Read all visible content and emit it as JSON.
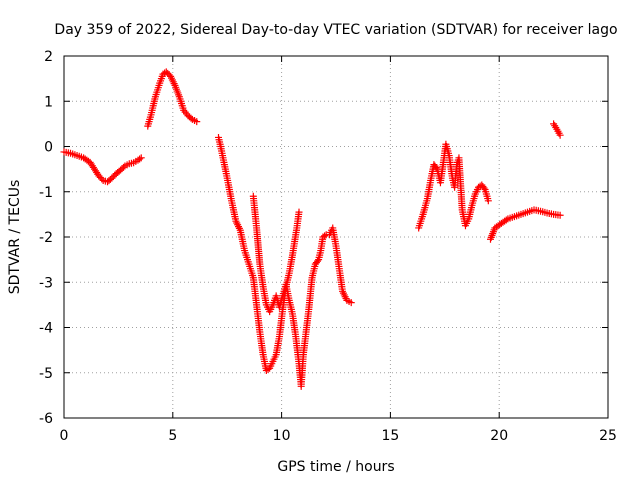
{
  "chart_data": {
    "type": "scatter",
    "title": "Day 359 of 2022, Sidereal Day-to-day VTEC variation (SDTVAR) for receiver lago",
    "xlabel": "GPS time / hours",
    "ylabel": "SDTVAR / TECUs",
    "xlim": [
      0,
      25
    ],
    "ylim": [
      -6,
      2
    ],
    "xticks": [
      0,
      5,
      10,
      15,
      20,
      25
    ],
    "yticks": [
      -6,
      -5,
      -4,
      -3,
      -2,
      -1,
      0,
      1,
      2
    ],
    "grid": true,
    "marker": "+",
    "series_color": "#ff0000",
    "series": [
      {
        "segments": [
          [
            [
              0.0,
              -0.12
            ],
            [
              0.3,
              -0.15
            ],
            [
              0.6,
              -0.2
            ],
            [
              0.9,
              -0.25
            ],
            [
              1.2,
              -0.35
            ],
            [
              1.4,
              -0.5
            ],
            [
              1.6,
              -0.65
            ],
            [
              1.8,
              -0.75
            ],
            [
              2.0,
              -0.78
            ],
            [
              2.2,
              -0.7
            ],
            [
              2.4,
              -0.6
            ],
            [
              2.6,
              -0.52
            ],
            [
              2.8,
              -0.43
            ],
            [
              3.0,
              -0.38
            ],
            [
              3.2,
              -0.36
            ],
            [
              3.4,
              -0.3
            ],
            [
              3.55,
              -0.25
            ]
          ],
          [
            [
              3.85,
              0.45
            ],
            [
              4.0,
              0.7
            ],
            [
              4.2,
              1.1
            ],
            [
              4.4,
              1.4
            ],
            [
              4.55,
              1.6
            ],
            [
              4.7,
              1.65
            ],
            [
              4.9,
              1.55
            ],
            [
              5.1,
              1.35
            ],
            [
              5.3,
              1.1
            ],
            [
              5.5,
              0.8
            ],
            [
              5.7,
              0.68
            ],
            [
              5.9,
              0.6
            ],
            [
              6.1,
              0.55
            ]
          ],
          [
            [
              7.1,
              0.2
            ],
            [
              7.2,
              0.0
            ],
            [
              7.35,
              -0.35
            ],
            [
              7.5,
              -0.7
            ],
            [
              7.7,
              -1.2
            ],
            [
              7.9,
              -1.65
            ],
            [
              8.1,
              -1.85
            ],
            [
              8.3,
              -2.3
            ],
            [
              8.5,
              -2.6
            ],
            [
              8.7,
              -2.9
            ],
            [
              8.85,
              -3.5
            ],
            [
              9.0,
              -4.1
            ],
            [
              9.15,
              -4.6
            ],
            [
              9.3,
              -4.95
            ],
            [
              9.45,
              -4.9
            ],
            [
              9.6,
              -4.75
            ],
            [
              9.75,
              -4.6
            ],
            [
              9.9,
              -4.2
            ],
            [
              10.05,
              -3.6
            ],
            [
              10.2,
              -3.1
            ],
            [
              10.35,
              -2.8
            ],
            [
              10.5,
              -2.4
            ],
            [
              10.6,
              -2.1
            ],
            [
              10.7,
              -1.8
            ],
            [
              10.8,
              -1.45
            ]
          ],
          [
            [
              8.7,
              -1.1
            ],
            [
              8.85,
              -1.8
            ],
            [
              9.0,
              -2.6
            ],
            [
              9.15,
              -3.1
            ],
            [
              9.3,
              -3.5
            ],
            [
              9.45,
              -3.65
            ],
            [
              9.6,
              -3.5
            ],
            [
              9.75,
              -3.3
            ],
            [
              9.9,
              -3.55
            ],
            [
              10.05,
              -3.3
            ],
            [
              10.2,
              -3.05
            ],
            [
              10.35,
              -3.4
            ],
            [
              10.5,
              -3.7
            ],
            [
              10.65,
              -4.2
            ],
            [
              10.8,
              -4.8
            ],
            [
              10.9,
              -5.3
            ],
            [
              11.0,
              -4.6
            ],
            [
              11.1,
              -4.2
            ],
            [
              11.25,
              -3.6
            ],
            [
              11.4,
              -2.9
            ],
            [
              11.55,
              -2.6
            ],
            [
              11.7,
              -2.5
            ],
            [
              11.8,
              -2.3
            ],
            [
              11.9,
              -2.0
            ],
            [
              12.05,
              -1.95
            ],
            [
              12.2,
              -1.95
            ],
            [
              12.35,
              -1.8
            ],
            [
              12.5,
              -2.2
            ],
            [
              12.65,
              -2.7
            ],
            [
              12.8,
              -3.2
            ],
            [
              13.0,
              -3.4
            ],
            [
              13.2,
              -3.45
            ]
          ],
          [
            [
              16.3,
              -1.8
            ],
            [
              16.5,
              -1.5
            ],
            [
              16.7,
              -1.15
            ],
            [
              16.85,
              -0.75
            ],
            [
              17.0,
              -0.4
            ],
            [
              17.15,
              -0.5
            ],
            [
              17.3,
              -0.8
            ],
            [
              17.45,
              -0.3
            ],
            [
              17.55,
              0.05
            ],
            [
              17.7,
              -0.2
            ],
            [
              17.85,
              -0.7
            ],
            [
              17.95,
              -0.9
            ],
            [
              18.05,
              -0.4
            ],
            [
              18.15,
              -0.25
            ],
            [
              18.3,
              -1.4
            ],
            [
              18.45,
              -1.75
            ],
            [
              18.6,
              -1.6
            ],
            [
              18.75,
              -1.3
            ],
            [
              18.9,
              -1.05
            ],
            [
              19.05,
              -0.9
            ],
            [
              19.2,
              -0.85
            ],
            [
              19.35,
              -0.95
            ],
            [
              19.5,
              -1.2
            ]
          ],
          [
            [
              19.6,
              -2.05
            ],
            [
              19.8,
              -1.8
            ],
            [
              20.1,
              -1.7
            ],
            [
              20.4,
              -1.6
            ],
            [
              20.7,
              -1.55
            ],
            [
              21.0,
              -1.5
            ],
            [
              21.3,
              -1.45
            ],
            [
              21.6,
              -1.4
            ],
            [
              21.9,
              -1.43
            ],
            [
              22.2,
              -1.47
            ],
            [
              22.5,
              -1.5
            ],
            [
              22.8,
              -1.52
            ]
          ],
          [
            [
              22.5,
              0.5
            ],
            [
              22.65,
              0.38
            ],
            [
              22.8,
              0.25
            ]
          ]
        ]
      }
    ]
  }
}
